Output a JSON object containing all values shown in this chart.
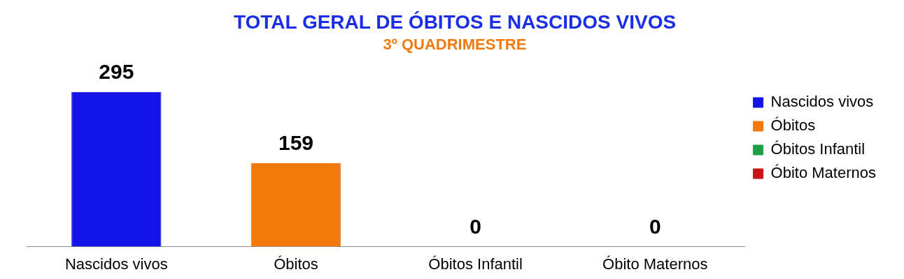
{
  "chart_data": {
    "type": "bar",
    "title": "TOTAL GERAL DE ÓBITOS E NASCIDOS VIVOS",
    "subtitle": "3º QUADRIMESTRE",
    "categories": [
      "Nascidos vivos",
      "Óbitos",
      "Óbitos Infantil",
      "Óbito Maternos"
    ],
    "series": [
      {
        "name": "Nascidos vivos",
        "color": "#1414e6",
        "values": [
          295,
          null,
          null,
          null
        ]
      },
      {
        "name": "Óbitos",
        "color": "#f27a0c",
        "values": [
          null,
          159,
          null,
          null
        ]
      },
      {
        "name": "Óbitos Infantil",
        "color": "#1f9e45",
        "values": [
          null,
          null,
          0,
          null
        ]
      },
      {
        "name": "Óbito Maternos",
        "color": "#c81414",
        "values": [
          null,
          null,
          null,
          0
        ]
      }
    ],
    "data_labels": true,
    "legend": "right",
    "grid": false,
    "tick_labels": "x"
  }
}
